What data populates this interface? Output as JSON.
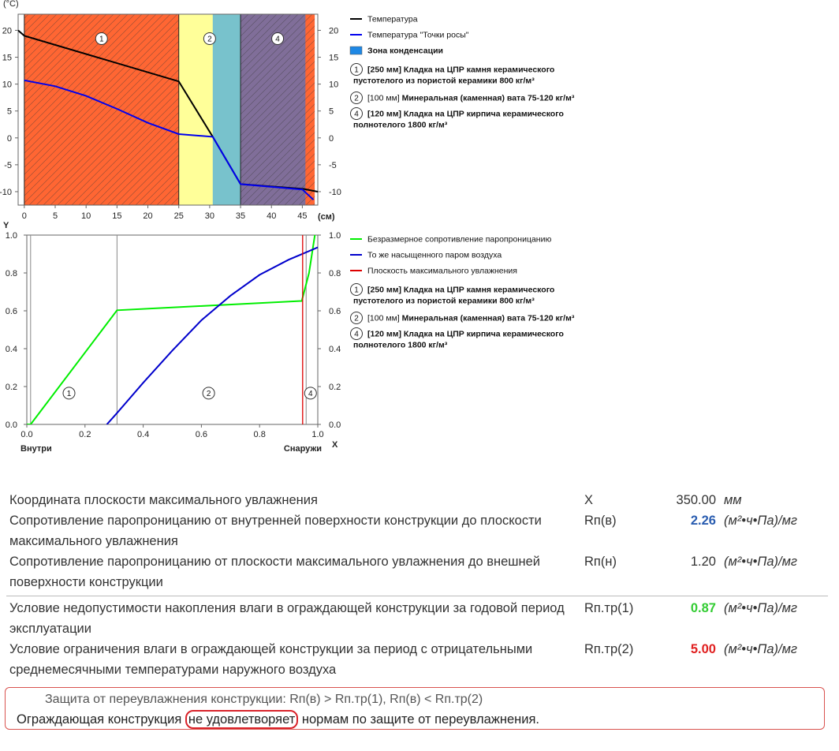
{
  "chart_data": [
    {
      "type": "line",
      "ylabel": "(°C)",
      "xlabel": "(см)",
      "xlim": [
        -1,
        47.5
      ],
      "ylim": [
        -12.5,
        23
      ],
      "xticks": [
        0,
        5,
        10,
        15,
        20,
        25,
        30,
        35,
        40,
        45
      ],
      "yticks": [
        20,
        15,
        10,
        5,
        0,
        -5,
        -10
      ],
      "layers": [
        {
          "id": "1",
          "from": 0,
          "to": 25,
          "color": "#FF6633",
          "hatch": true,
          "label_x": 12.5
        },
        {
          "id": "2",
          "from": 25,
          "to": 35,
          "color": "#FFFF99",
          "hatch": false,
          "label_x": 30
        },
        {
          "id": "cond",
          "from": 30.5,
          "to": 35,
          "color": "#78C2CC",
          "hatch": false
        },
        {
          "id": "4",
          "from": 35,
          "to": 47,
          "color": "#806E99",
          "hatch": true,
          "label_x": 41
        },
        {
          "id": "4b",
          "from": 45.5,
          "to": 47,
          "color": "#FF6633",
          "hatch": true
        }
      ],
      "series": [
        {
          "name": "Температура",
          "color": "#000000",
          "points": [
            [
              -1,
              20
            ],
            [
              0,
              19
            ],
            [
              25,
              10.5
            ],
            [
              30.5,
              0.2
            ],
            [
              35,
              -8.6
            ],
            [
              45.2,
              -9.5
            ],
            [
              47.5,
              -10
            ]
          ]
        },
        {
          "name": "Температура \"Точки росы\"",
          "color": "#0000EE",
          "points": [
            [
              0,
              10.7
            ],
            [
              5,
              9.6
            ],
            [
              10,
              7.8
            ],
            [
              15,
              5.4
            ],
            [
              20,
              2.8
            ],
            [
              25,
              0.7
            ],
            [
              30.5,
              0.2
            ],
            [
              35,
              -8.6
            ],
            [
              45,
              -9.6
            ],
            [
              46.8,
              -11.5
            ]
          ]
        }
      ],
      "legend": [
        {
          "text": "Температура",
          "color": "#000000",
          "kind": "line"
        },
        {
          "text": "Температура \"Точки росы\"",
          "color": "#0000EE",
          "kind": "line"
        },
        {
          "text": "Зона конденсации",
          "color": "#1E88E5",
          "kind": "box",
          "bold": true
        },
        {
          "num": "1",
          "bold": "[250 мм] Кладка на ЦПР камня керамического",
          "line2": "пустотелого из пористой керамики 800 кг/м³"
        },
        {
          "num": "2",
          "plain": "[100 мм] ",
          "bold": "Минеральная (каменная) вата 75-120 кг/м³"
        },
        {
          "num": "4",
          "bold": "[120 мм] Кладка на ЦПР кирпича керамического",
          "line2": "полнотелого 1800 кг/м³"
        }
      ]
    },
    {
      "type": "line",
      "ylabel": "Y",
      "xlabel": "X",
      "xlim": [
        0,
        1
      ],
      "ylim": [
        0,
        1
      ],
      "xticks": [
        0.0,
        0.2,
        0.4,
        0.6,
        0.8,
        1.0
      ],
      "yticks": [
        1.0,
        0.8,
        0.6,
        0.4,
        0.2,
        0.0
      ],
      "x_left_label": "Внутри",
      "x_right_label": "Снаружи",
      "boundaries": [
        0.013,
        0.31,
        0.96
      ],
      "region_labels": [
        {
          "id": "1",
          "x": 0.145
        },
        {
          "id": "2",
          "x": 0.625
        },
        {
          "id": "4",
          "x": 0.975
        }
      ],
      "series": [
        {
          "name": "Безразмерное сопротивление паропроницанию",
          "color": "#00EE00",
          "points": [
            [
              0.0,
              0.0
            ],
            [
              0.013,
              0.0
            ],
            [
              0.31,
              0.603
            ],
            [
              0.945,
              0.652
            ],
            [
              0.97,
              0.8
            ],
            [
              0.99,
              1.0
            ]
          ]
        },
        {
          "name": "То же насыщенного паром воздуха",
          "color": "#0000CC",
          "points": [
            [
              0.275,
              0.0
            ],
            [
              0.31,
              0.06
            ],
            [
              0.4,
              0.22
            ],
            [
              0.5,
              0.39
            ],
            [
              0.6,
              0.55
            ],
            [
              0.7,
              0.68
            ],
            [
              0.8,
              0.79
            ],
            [
              0.9,
              0.87
            ],
            [
              1.0,
              0.935
            ]
          ]
        },
        {
          "name": "Плоскость максимального увлажнения",
          "color": "#DD0000",
          "points": [
            [
              0.948,
              0.0
            ],
            [
              0.948,
              1.0
            ]
          ]
        }
      ],
      "legend": [
        {
          "text": "Безразмерное сопротивление паропроницанию",
          "color": "#00EE00",
          "kind": "line"
        },
        {
          "text": "То же насыщенного паром воздуха",
          "color": "#0000CC",
          "kind": "line"
        },
        {
          "text": "Плоскость максимального увлажнения",
          "color": "#DD0000",
          "kind": "line"
        },
        {
          "num": "1",
          "bold": "[250 мм] Кладка на ЦПР камня керамического",
          "line2": "пустотелого из пористой керамики 800 кг/м³"
        },
        {
          "num": "2",
          "plain": "[100 мм] ",
          "bold": "Минеральная (каменная) вата 75-120 кг/м³"
        },
        {
          "num": "4",
          "bold": "[120 мм] Кладка на ЦПР кирпича керамического",
          "line2": "полнотелого 1800 кг/м³"
        }
      ]
    }
  ],
  "results": [
    {
      "label": "Координата плоскости максимального увлажнения",
      "symbol": "X",
      "value": "350.00",
      "value_color": "#333333",
      "unit": "мм",
      "bold": false
    },
    {
      "label": "Сопротивление паропроницанию от внутренней поверхности конструкции до плоскости максимального увлажнения",
      "symbol": "Rп(в)",
      "value": "2.26",
      "value_color": "#2A5DB0",
      "unit": "(м²•ч•Па)/мг",
      "bold": true
    },
    {
      "label": "Сопротивление паропроницанию от плоскости максимального увлажнения до внешней поверхности конструкции",
      "symbol": "Rп(н)",
      "value": "1.20",
      "value_color": "#333333",
      "unit": "(м²•ч•Па)/мг",
      "bold": false
    },
    {
      "label": "Условие недопустимости накопления влаги в ограждающей конструкции за годовой период эксплуатации",
      "symbol": "Rп.тр(1)",
      "value": "0.87",
      "value_color": "#33CC33",
      "unit": "(м²•ч•Па)/мг",
      "bold": true
    },
    {
      "label": "Условие ограничения влаги в ограждающей конструкции за период с отрицательными среднемесячными температурами наружного воздуха",
      "symbol": "Rп.тр(2)",
      "value": "5.00",
      "value_color": "#E02020",
      "unit": "(м²•ч•Па)/мг",
      "bold": true
    }
  ],
  "conclusion": {
    "condition": "Защита от переувлажнения конструкции: Rп(в) > Rп.тр(1), Rп(в) < Rп.тр(2)",
    "prefix": "Ограждающая конструкция ",
    "highlight": "не удовлетворяет",
    "suffix": " нормам по защите от переувлажнения."
  }
}
